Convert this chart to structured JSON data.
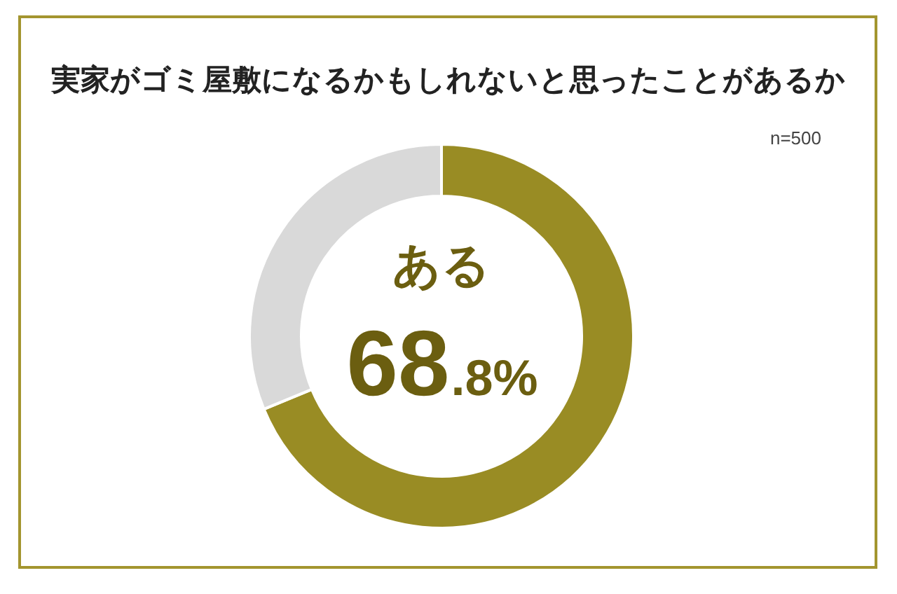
{
  "chart_data": {
    "type": "donut",
    "title": "実家がゴミ屋敷になるかもしれないと思ったことがあるか",
    "annotations": [
      "n=500"
    ],
    "categories": [
      "ある",
      null
    ],
    "values": [
      68.8,
      31.2
    ],
    "colors": [
      "#998c24",
      "#d9d9d9"
    ],
    "value_labels": [
      "68.8%",
      null
    ],
    "legend": false
  }
}
